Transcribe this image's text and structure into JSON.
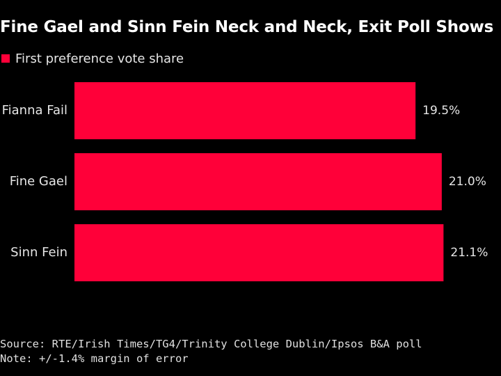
{
  "chart_data": {
    "type": "bar",
    "orientation": "horizontal",
    "title": "Fine Gael and Sinn Fein Neck and Neck, Exit Poll Shows",
    "categories": [
      "Fianna Fail",
      "Fine Gael",
      "Sinn Fein"
    ],
    "series": [
      {
        "name": "First preference vote share",
        "values": [
          19.5,
          21.0,
          21.1
        ],
        "data_labels": [
          "19.5%",
          "21.0%",
          "21.1%"
        ],
        "color": "#ff0039"
      }
    ],
    "xlim": [
      0,
      22
    ],
    "grid": false,
    "legend_position": "top-left",
    "source": "Source: RTE/Irish Times/TG4/Trinity College Dublin/Ipsos B&A poll",
    "note": "Note: +/-1.4% margin of error"
  },
  "colors": {
    "background": "#000000",
    "bar": "#ff0039",
    "text": "#ffffff"
  }
}
